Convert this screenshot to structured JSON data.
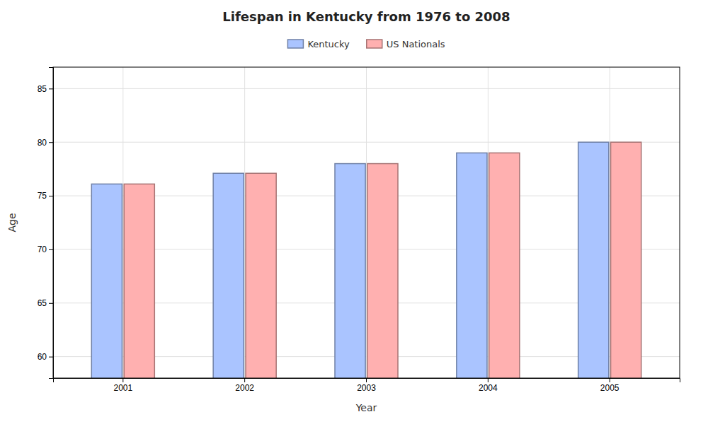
{
  "chart_data": {
    "type": "bar",
    "title": "Lifespan in Kentucky from 1976 to 2008",
    "x_label": "Year",
    "y_label": "Age",
    "categories": [
      "2001",
      "2002",
      "2003",
      "2004",
      "2005"
    ],
    "series": [
      {
        "name": "Kentucky",
        "color": "#aac4ff",
        "values": [
          76.1,
          77.1,
          78.0,
          79.0,
          80.0
        ]
      },
      {
        "name": "US Nationals",
        "color": "#ffb0b0",
        "values": [
          76.1,
          77.1,
          78.0,
          79.0,
          80.0
        ]
      }
    ],
    "ylim": [
      58,
      87
    ],
    "yticks": [
      60,
      65,
      70,
      75,
      80,
      85
    ],
    "grid": true,
    "legend": "top"
  }
}
